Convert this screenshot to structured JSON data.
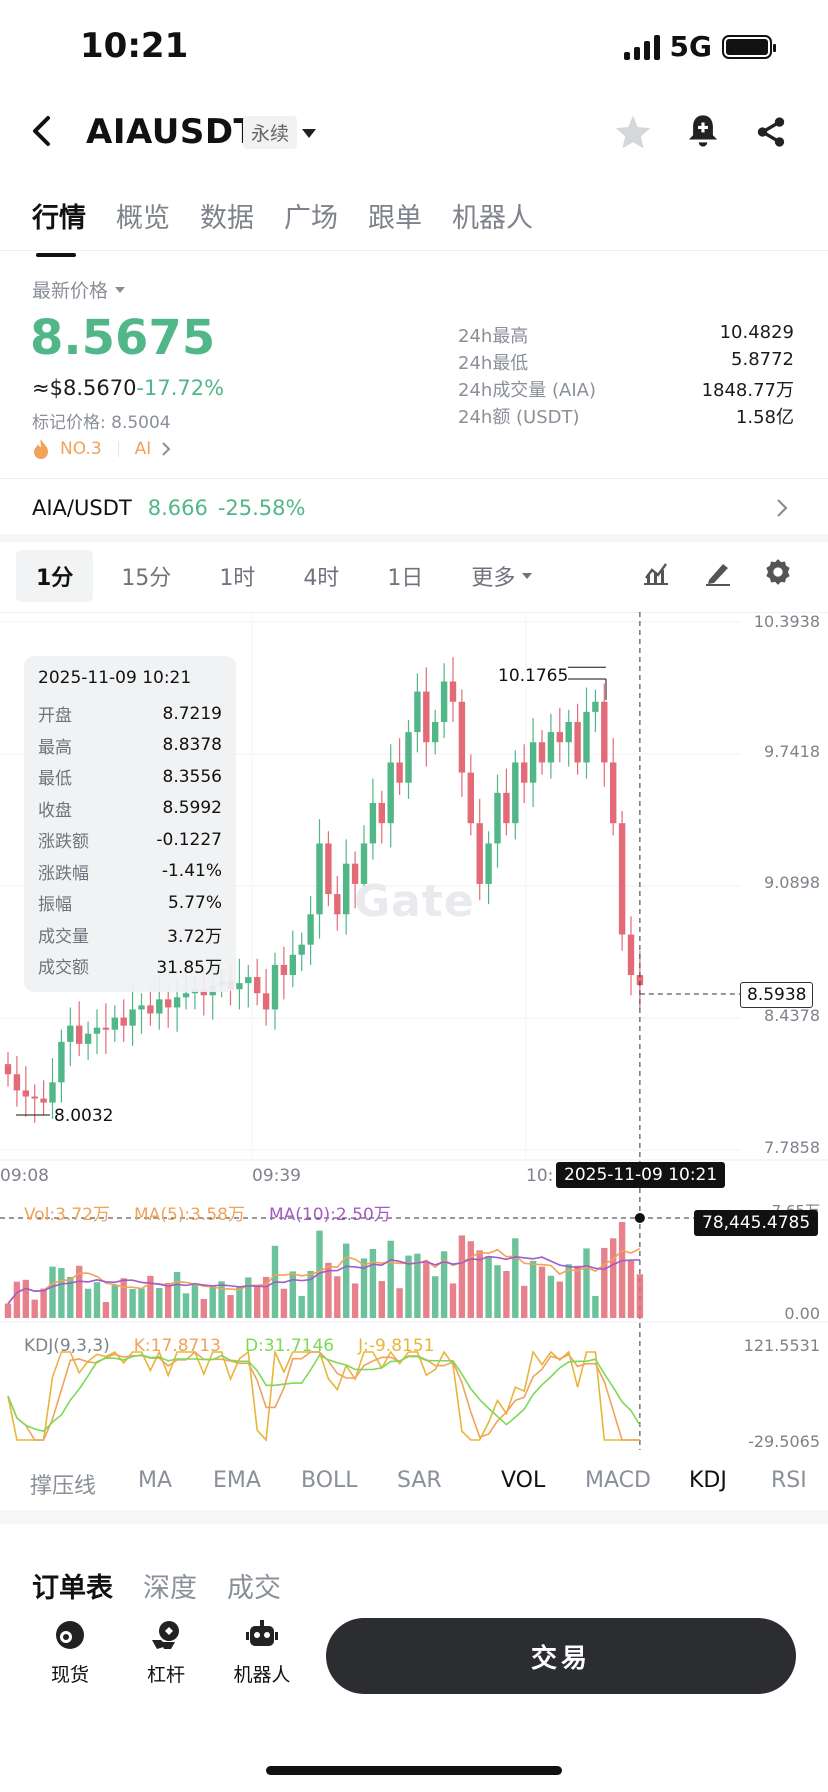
{
  "status_bar": {
    "time": "10:21",
    "network": "5G"
  },
  "header": {
    "title": "AIAUSDT",
    "badge": "永续"
  },
  "nav_tabs": [
    "行情",
    "概览",
    "数据",
    "广场",
    "跟单",
    "机器人"
  ],
  "price": {
    "label": "最新价格",
    "last": "8.5675",
    "usd": "≈$8.5670",
    "change": "-17.72%",
    "mark": "标记价格: 8.5004",
    "rank": "NO.3",
    "tag": "AI"
  },
  "stats": [
    {
      "label": "24h最高",
      "value": "10.4829"
    },
    {
      "label": "24h最低",
      "value": "5.8772"
    },
    {
      "label": "24h成交量 (AIA)",
      "value": "1848.77万"
    },
    {
      "label": "24h额 (USDT)",
      "value": "1.58亿"
    }
  ],
  "spot": {
    "pair": "AIA/USDT",
    "price": "8.666",
    "change": "-25.58%"
  },
  "periods": {
    "items": [
      "1分",
      "15分",
      "1时",
      "4时",
      "1日"
    ],
    "more": "更多"
  },
  "chart_data": {
    "type": "candlestick",
    "y_axis": [
      "10.3938",
      "9.7418",
      "9.0898",
      "8.4378",
      "7.7858"
    ],
    "x_axis": [
      "09:08",
      "09:39",
      "10:"
    ],
    "high_label": "10.1765",
    "low_label": "8.0032",
    "watermark": "Gate",
    "current_price": "8.5938",
    "crosshair_time": "2025-11-09 10:21",
    "crosshair_value": "78,445.4785",
    "vol_axis": [
      "0.00"
    ],
    "vol_axis_top": "7.65万",
    "kdj_axis": [
      "121.5531",
      "-29.5065"
    ],
    "closes": [
      8.16,
      8.08,
      8.05,
      8.04,
      8.02,
      8.12,
      8.32,
      8.4,
      8.31,
      8.36,
      8.39,
      8.38,
      8.44,
      8.4,
      8.48,
      8.5,
      8.46,
      8.53,
      8.49,
      8.54,
      8.56,
      8.58,
      8.55,
      8.6,
      8.62,
      8.58,
      8.61,
      8.64,
      8.56,
      8.48,
      8.7,
      8.65,
      8.75,
      8.8,
      8.95,
      9.3,
      9.05,
      8.95,
      9.2,
      9.1,
      9.3,
      9.5,
      9.4,
      9.7,
      9.6,
      9.85,
      10.05,
      9.8,
      9.9,
      10.1,
      10.0,
      9.65,
      9.4,
      9.1,
      9.3,
      9.55,
      9.4,
      9.7,
      9.6,
      9.8,
      9.7,
      9.85,
      9.8,
      9.9,
      9.7,
      9.95,
      10.0,
      9.7,
      9.4,
      8.85,
      8.65,
      8.6
    ]
  },
  "tooltip": {
    "date": "2025-11-09 10:21",
    "rows": [
      {
        "k": "开盘",
        "v": "8.7219"
      },
      {
        "k": "最高",
        "v": "8.8378"
      },
      {
        "k": "最低",
        "v": "8.3556"
      },
      {
        "k": "收盘",
        "v": "8.5992"
      },
      {
        "k": "涨跌额",
        "v": "-0.1227"
      },
      {
        "k": "涨跌幅",
        "v": "-1.41%"
      },
      {
        "k": "振幅",
        "v": "5.77%"
      },
      {
        "k": "成交量",
        "v": "3.72万"
      },
      {
        "k": "成交额",
        "v": "31.85万"
      }
    ]
  },
  "volume": {
    "vol": "Vol:3.72万",
    "ma5": "MA(5):3.58万",
    "ma10": "MA(10):2.50万"
  },
  "kdj": {
    "title": "KDJ(9,3,3)",
    "k": "K:17.8713",
    "d": "D:31.7146",
    "j": "J:-9.8151"
  },
  "indicators": [
    "撑压线",
    "MA",
    "EMA",
    "BOLL",
    "SAR",
    "VOL",
    "MACD",
    "KDJ",
    "RSI"
  ],
  "book_tabs": [
    "订单表",
    "深度",
    "成交"
  ],
  "bottom_nav": [
    {
      "label": "现货",
      "icon": "spot-icon"
    },
    {
      "label": "杠杆",
      "icon": "leverage-icon"
    },
    {
      "label": "机器人",
      "icon": "robot-icon"
    }
  ],
  "trade_button": "交易",
  "colors": {
    "up": "#52b788",
    "down": "#e36b78",
    "text": "#1c1c1c"
  }
}
